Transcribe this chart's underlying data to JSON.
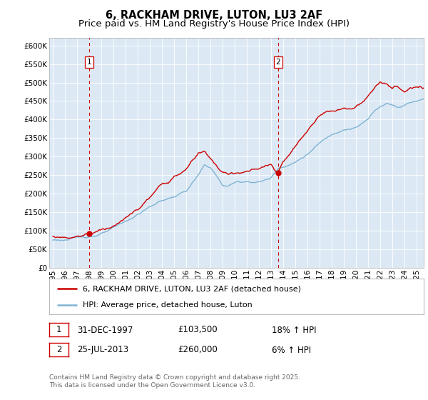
{
  "title": "6, RACKHAM DRIVE, LUTON, LU3 2AF",
  "subtitle": "Price paid vs. HM Land Registry's House Price Index (HPI)",
  "ylim": [
    0,
    620000
  ],
  "yticks": [
    0,
    50000,
    100000,
    150000,
    200000,
    250000,
    300000,
    350000,
    400000,
    450000,
    500000,
    550000,
    600000
  ],
  "bg_color": "#dce9f5",
  "grid_color": "#ffffff",
  "red_line_color": "#cc0000",
  "blue_line_color": "#7fb3d3",
  "sale1_year": 1997.99,
  "sale1_price": 103500,
  "sale2_year": 2013.57,
  "sale2_price": 260000,
  "legend_label_red": "6, RACKHAM DRIVE, LUTON, LU3 2AF (detached house)",
  "legend_label_blue": "HPI: Average price, detached house, Luton",
  "sale1_date_str": "31-DEC-1997",
  "sale1_price_str": "£103,500",
  "sale1_hpi_str": "18% ↑ HPI",
  "sale2_date_str": "25-JUL-2013",
  "sale2_price_str": "£260,000",
  "sale2_hpi_str": "6% ↑ HPI",
  "footer": "Contains HM Land Registry data © Crown copyright and database right 2025.\nThis data is licensed under the Open Government Licence v3.0.",
  "title_fontsize": 10.5,
  "subtitle_fontsize": 9.5,
  "tick_fontsize": 7.5,
  "legend_fontsize": 8,
  "annot_fontsize": 8.5,
  "footer_fontsize": 6.5
}
